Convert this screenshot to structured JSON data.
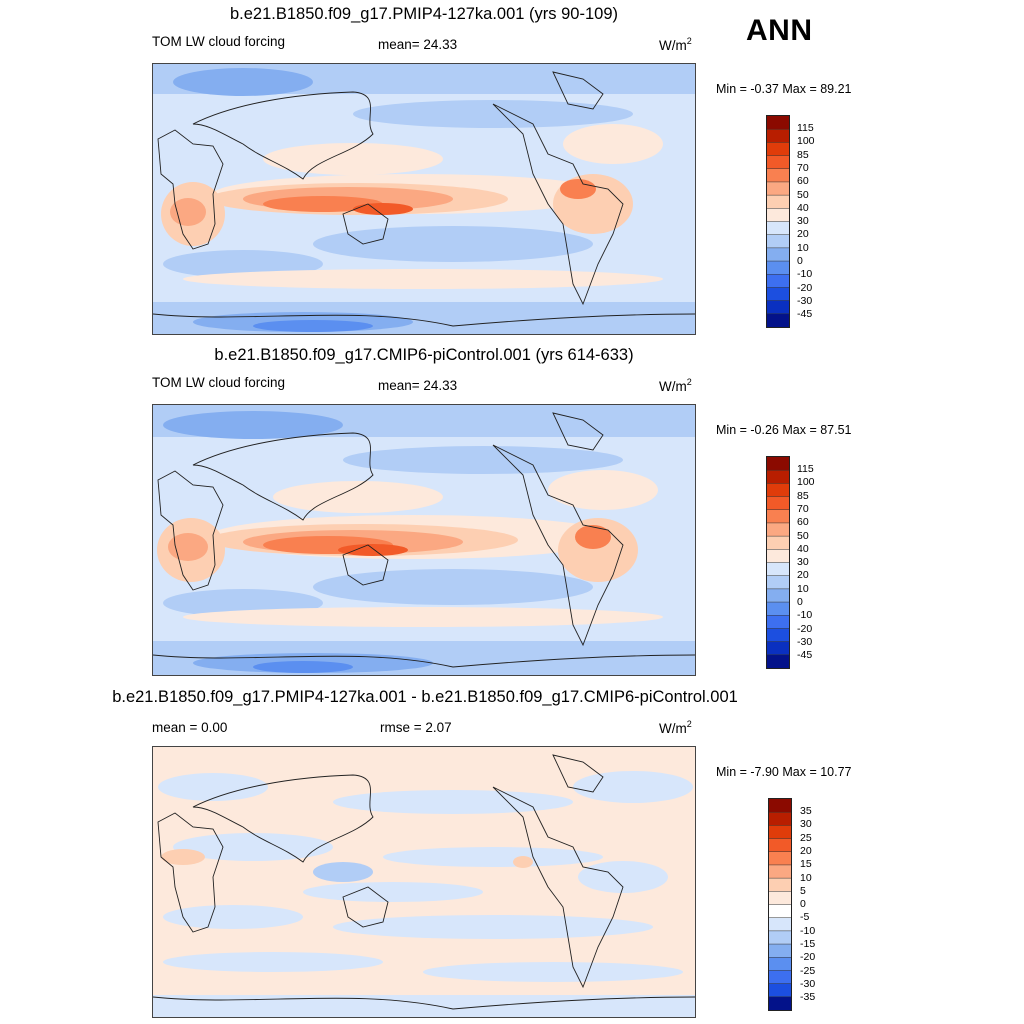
{
  "season": "ANN",
  "panels": [
    {
      "title": "b.e21.B1850.f09_g17.PMIP4-127ka.001 (yrs 90-109)",
      "left_label": "TOM LW cloud forcing",
      "stat": "mean=  24.33",
      "units": "W/m",
      "units_sup": "2",
      "minmax": "Min =  -0.37 Max =  89.21",
      "kind": "absolute"
    },
    {
      "title": "b.e21.B1850.f09_g17.CMIP6-piControl.001 (yrs 614-633)",
      "left_label": "TOM LW cloud forcing",
      "stat": "mean=  24.33",
      "units": "W/m",
      "units_sup": "2",
      "minmax": "Min =  -0.26 Max =  87.51",
      "kind": "absolute"
    },
    {
      "title": "b.e21.B1850.f09_g17.PMIP4-127ka.001 - b.e21.B1850.f09_g17.CMIP6-piControl.001",
      "left_label": "mean =   0.00",
      "stat": "rmse =   2.07",
      "units": "W/m",
      "units_sup": "2",
      "minmax": "Min =  -7.90 Max =  10.77",
      "kind": "difference"
    }
  ],
  "colorbars": {
    "absolute": {
      "labels": [
        "115",
        "100",
        "85",
        "70",
        "60",
        "50",
        "40",
        "30",
        "20",
        "10",
        "0",
        "-10",
        "-20",
        "-30",
        "-45"
      ],
      "colors": [
        "#8b0a00",
        "#b81e00",
        "#e03c0a",
        "#f25a28",
        "#f98050",
        "#fba882",
        "#fdcfb2",
        "#fde9dc",
        "#d7e6fb",
        "#b1cdf6",
        "#84aef0",
        "#5b8ff0",
        "#3d6ff0",
        "#1c4fe0",
        "#0a30c0",
        "#03128a"
      ]
    },
    "difference": {
      "labels": [
        "35",
        "30",
        "25",
        "20",
        "15",
        "10",
        "5",
        "0",
        "-5",
        "-10",
        "-15",
        "-20",
        "-25",
        "-30",
        "-35"
      ],
      "colors": [
        "#8b0a00",
        "#b81e00",
        "#e03c0a",
        "#f25a28",
        "#f98050",
        "#fba882",
        "#fdcfb2",
        "#fde9dc",
        "#ffffff",
        "#d7e6fb",
        "#b1cdf6",
        "#84aef0",
        "#5b8ff0",
        "#3d6ff0",
        "#1c4fe0",
        "#03128a"
      ]
    }
  }
}
